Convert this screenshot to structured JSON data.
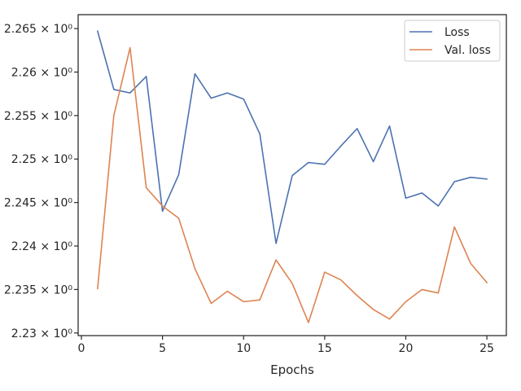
{
  "chart_data": {
    "type": "line",
    "title": "",
    "xlabel": "Epochs",
    "ylabel": "",
    "x": [
      1,
      2,
      3,
      4,
      5,
      6,
      7,
      8,
      9,
      10,
      11,
      12,
      13,
      14,
      15,
      16,
      17,
      18,
      19,
      20,
      21,
      22,
      23,
      24,
      25
    ],
    "xlim": [
      -0.2,
      26.2
    ],
    "ylim": [
      2.2297,
      2.2666
    ],
    "xticks": [
      0,
      5,
      10,
      15,
      20,
      25
    ],
    "xtick_labels": [
      "0",
      "5",
      "10",
      "15",
      "20",
      "25"
    ],
    "yticks": [
      2.23,
      2.235,
      2.24,
      2.245,
      2.25,
      2.255,
      2.26,
      2.265
    ],
    "ytick_labels": [
      "2.23 × 10⁰",
      "2.235 × 10⁰",
      "2.24 × 10⁰",
      "2.245 × 10⁰",
      "2.25 × 10⁰",
      "2.255 × 10⁰",
      "2.26 × 10⁰",
      "2.265 × 10⁰"
    ],
    "grid": false,
    "legend": "top-right",
    "series": [
      {
        "name": "Loss",
        "color": "#4c72b0",
        "values": [
          2.2647,
          2.258,
          2.2576,
          2.2595,
          2.244,
          2.2482,
          2.2598,
          2.257,
          2.2576,
          2.2569,
          2.2529,
          2.2403,
          2.2481,
          2.2496,
          2.2494,
          2.2515,
          2.2535,
          2.2497,
          2.2538,
          2.2455,
          2.2461,
          2.2446,
          2.2474,
          2.2479,
          2.2477
        ]
      },
      {
        "name": "Val. loss",
        "color": "#dd8452",
        "values": [
          2.2351,
          2.255,
          2.2628,
          2.2467,
          2.2446,
          2.2432,
          2.2374,
          2.2334,
          2.2348,
          2.2336,
          2.2338,
          2.2384,
          2.2357,
          2.2312,
          2.237,
          2.2361,
          2.2343,
          2.2327,
          2.2316,
          2.2336,
          2.235,
          2.2346,
          2.2422,
          2.238,
          2.2358
        ]
      }
    ]
  }
}
